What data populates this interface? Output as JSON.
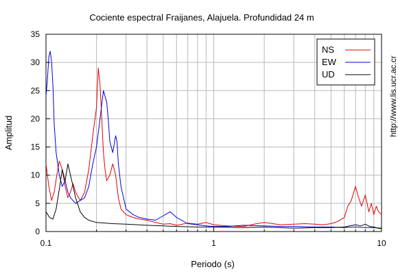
{
  "chart_data": {
    "type": "line",
    "title": "Cociente espectral Fraijanes, Alajuela. Profundidad 24 m",
    "xlabel": "Periodo (s)",
    "ylabel": "Amplitud",
    "xscale": "log",
    "xlim": [
      0.1,
      10
    ],
    "ylim": [
      0,
      35
    ],
    "xticks": [
      0.1,
      1,
      10
    ],
    "xtick_labels": [
      "0.1",
      "1",
      "10"
    ],
    "yticks": [
      0,
      5,
      10,
      15,
      20,
      25,
      30,
      35
    ],
    "ytick_labels": [
      "0",
      "5",
      "10",
      "15",
      "20",
      "25",
      "30",
      "35"
    ],
    "grid": true,
    "legend_position": "top-right",
    "credit": "http://www.lis.ucr.ac.cr",
    "colors": {
      "NS": "#e00000",
      "EW": "#0000d8",
      "UD": "#000000",
      "grid": "#b8b8b8"
    },
    "series": [
      {
        "name": "NS",
        "color": "#e00000",
        "x": [
          0.1,
          0.104,
          0.108,
          0.112,
          0.116,
          0.12,
          0.125,
          0.13,
          0.135,
          0.14,
          0.145,
          0.15,
          0.16,
          0.17,
          0.18,
          0.19,
          0.2,
          0.205,
          0.21,
          0.215,
          0.22,
          0.225,
          0.23,
          0.24,
          0.25,
          0.26,
          0.27,
          0.28,
          0.3,
          0.33,
          0.36,
          0.4,
          0.45,
          0.5,
          0.55,
          0.6,
          0.7,
          0.8,
          0.9,
          1.0,
          1.2,
          1.5,
          1.8,
          2.0,
          2.5,
          3.0,
          3.5,
          4.0,
          4.5,
          5.0,
          5.5,
          6.0,
          6.3,
          6.6,
          7.0,
          7.3,
          7.6,
          8.0,
          8.4,
          8.7,
          9.0,
          9.3,
          9.6,
          10.0
        ],
        "y": [
          12,
          8,
          5.5,
          7,
          10,
          12.5,
          11,
          8,
          6,
          7,
          8.5,
          7,
          5.5,
          7,
          11,
          17,
          22,
          29,
          26,
          20,
          14,
          11,
          9,
          10,
          12,
          10,
          6,
          4,
          3,
          2.5,
          2.2,
          2.0,
          1.6,
          1.3,
          1.4,
          1.1,
          1.5,
          1.3,
          1.6,
          1.2,
          1.0,
          0.9,
          1.4,
          1.6,
          1.2,
          1.3,
          1.4,
          1.3,
          1.2,
          1.4,
          1.8,
          2.5,
          4.5,
          5.5,
          8.0,
          6.0,
          4.5,
          6.5,
          3.5,
          5.0,
          3.0,
          4.5,
          3.5,
          3.0
        ]
      },
      {
        "name": "EW",
        "color": "#0000d8",
        "x": [
          0.1,
          0.102,
          0.104,
          0.106,
          0.108,
          0.11,
          0.112,
          0.115,
          0.12,
          0.125,
          0.13,
          0.135,
          0.14,
          0.15,
          0.16,
          0.17,
          0.18,
          0.19,
          0.2,
          0.21,
          0.22,
          0.23,
          0.235,
          0.24,
          0.25,
          0.26,
          0.265,
          0.27,
          0.28,
          0.3,
          0.33,
          0.36,
          0.4,
          0.45,
          0.5,
          0.55,
          0.6,
          0.7,
          0.8,
          0.9,
          1.0,
          1.2,
          1.5,
          2.0,
          2.5,
          3.0,
          4.0,
          5.0,
          6.0,
          7.0,
          8.0,
          9.0,
          10.0
        ],
        "y": [
          24,
          27,
          31,
          32,
          30,
          26,
          19,
          14,
          10,
          8,
          9,
          7,
          6,
          5,
          5.5,
          6,
          8,
          12,
          15,
          20,
          25,
          23,
          20,
          16,
          14,
          17,
          16,
          12,
          8,
          4,
          3,
          2.5,
          2.2,
          2.0,
          2.8,
          3.5,
          2.5,
          1.4,
          1.2,
          1.0,
          0.9,
          0.9,
          1.1,
          1.0,
          0.9,
          0.9,
          0.8,
          0.8,
          0.7,
          0.8,
          0.7,
          0.7,
          0.6
        ]
      },
      {
        "name": "UD",
        "color": "#000000",
        "x": [
          0.1,
          0.105,
          0.11,
          0.115,
          0.12,
          0.125,
          0.13,
          0.135,
          0.14,
          0.145,
          0.15,
          0.16,
          0.17,
          0.18,
          0.2,
          0.25,
          0.3,
          0.4,
          0.5,
          0.6,
          0.8,
          1.0,
          1.5,
          2.0,
          3.0,
          4.0,
          5.0,
          6.0,
          7.0,
          7.5,
          8.0,
          8.5,
          9.0,
          9.5,
          10.0
        ],
        "y": [
          3.5,
          2.5,
          2.2,
          4.0,
          7.5,
          11,
          9,
          12,
          10,
          8,
          6,
          3.5,
          2.5,
          2.0,
          1.6,
          1.4,
          1.3,
          1.1,
          1.0,
          0.9,
          0.8,
          0.8,
          0.7,
          0.8,
          0.6,
          0.7,
          0.7,
          0.8,
          1.2,
          1.0,
          1.3,
          0.9,
          0.8,
          0.6,
          0.5
        ]
      }
    ]
  }
}
